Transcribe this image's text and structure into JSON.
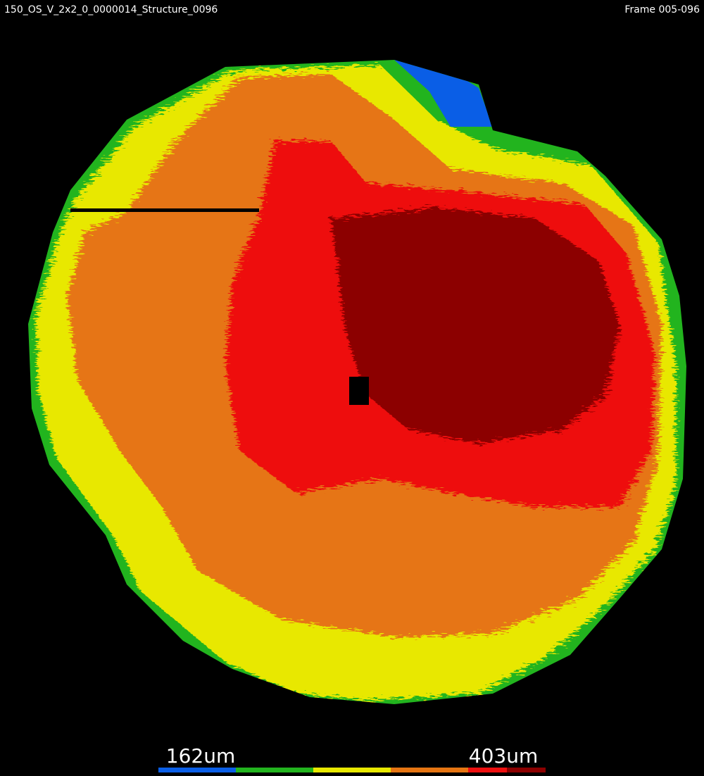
{
  "header": {
    "title": "150_OS_V_2x2_0_0000014_Structure_0096",
    "frame": "Frame 005-096"
  },
  "colorbar": {
    "min_label": "162um",
    "max_label": "403um"
  }
}
